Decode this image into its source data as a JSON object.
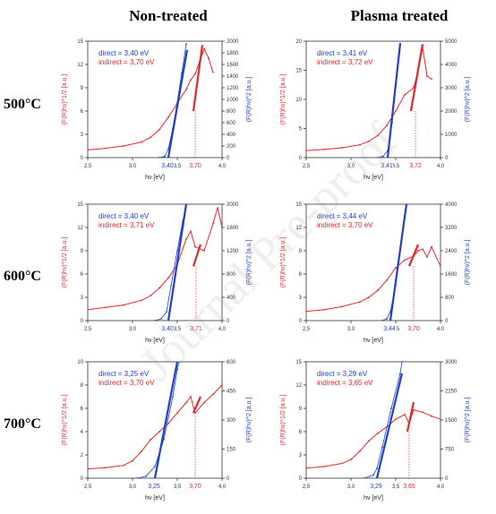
{
  "column_titles": [
    "Non-treated",
    "Plasma treated"
  ],
  "row_labels": [
    "500°C",
    "600°C",
    "700°C"
  ],
  "watermark": "Journal Pre-proof",
  "colors": {
    "indirect": "#e8262a",
    "direct": "#1f3fcf",
    "title": "#000000",
    "axis": "#333333"
  },
  "chart_data": [
    {
      "type": "line",
      "panel": "Non-treated 500°C",
      "xlabel": "hν [eV]",
      "ylabel_left": "(F(R)hν)^1/2 [a.u.]",
      "ylabel_right": "(F(R)hν)^2 [a.u.]",
      "xlim": [
        2.5,
        4.0
      ],
      "ylim_left": [
        0,
        15
      ],
      "ylim_right": [
        0,
        2000
      ],
      "x_ticks": [
        "2,5",
        "3,0",
        "3,5",
        "4,0"
      ],
      "y_ticks_left": [
        "0",
        "3",
        "6",
        "9",
        "12",
        "15"
      ],
      "y_ticks_right": [
        "0",
        "200",
        "400",
        "600",
        "800",
        "1000",
        "1200",
        "1400",
        "1600",
        "1800",
        "2000"
      ],
      "direct_label": "direct = 3,40 eV",
      "indirect_label": "indirect = 3,70 eV",
      "direct_marker": "3,40",
      "indirect_marker": "3,70",
      "direct_value": 3.4,
      "indirect_value": 3.7,
      "indirect_curve": [
        [
          2.5,
          1.0
        ],
        [
          2.7,
          1.2
        ],
        [
          2.9,
          1.5
        ],
        [
          3.1,
          2.0
        ],
        [
          3.2,
          2.6
        ],
        [
          3.3,
          3.6
        ],
        [
          3.4,
          5.2
        ],
        [
          3.5,
          7.0
        ],
        [
          3.6,
          8.8
        ],
        [
          3.65,
          10.0
        ],
        [
          3.7,
          10.8
        ],
        [
          3.75,
          12.4
        ],
        [
          3.8,
          14.0
        ],
        [
          3.85,
          12.8
        ],
        [
          3.9,
          11.0
        ]
      ],
      "direct_curve": [
        [
          3.3,
          0.0
        ],
        [
          3.36,
          20
        ],
        [
          3.4,
          150
        ],
        [
          3.45,
          500
        ],
        [
          3.5,
          950
        ],
        [
          3.55,
          1450
        ],
        [
          3.6,
          1950
        ]
      ],
      "indirect_fit": [
        [
          3.68,
          6.0
        ],
        [
          3.78,
          14.5
        ]
      ],
      "direct_fit": [
        [
          3.4,
          0
        ],
        [
          3.61,
          1850
        ]
      ]
    },
    {
      "type": "line",
      "panel": "Plasma treated 500°C",
      "xlabel": "hν [eV]",
      "ylabel_left": "(F(R)hν)^1/2 [a.u.]",
      "ylabel_right": "(F(R)hν)^2 [a.u.]",
      "xlim": [
        2.5,
        4.0
      ],
      "ylim_left": [
        0,
        20
      ],
      "ylim_right": [
        0,
        5000
      ],
      "x_ticks": [
        "2,5",
        "3,0",
        "3,5",
        "4,0"
      ],
      "y_ticks_left": [
        "0",
        "5",
        "10",
        "15",
        "20"
      ],
      "y_ticks_right": [
        "0",
        "1000",
        "2000",
        "3000",
        "4000",
        "5000"
      ],
      "direct_label": "direct = 3,41 eV",
      "indirect_label": "indirect = 3,72 eV",
      "direct_marker": "3,41",
      "indirect_marker": "3,72",
      "direct_value": 3.41,
      "indirect_value": 3.72,
      "indirect_curve": [
        [
          2.5,
          1.2
        ],
        [
          2.7,
          1.4
        ],
        [
          2.9,
          1.7
        ],
        [
          3.1,
          2.2
        ],
        [
          3.2,
          2.8
        ],
        [
          3.3,
          3.8
        ],
        [
          3.4,
          5.5
        ],
        [
          3.5,
          8.0
        ],
        [
          3.6,
          10.8
        ],
        [
          3.7,
          12.0
        ],
        [
          3.75,
          15.0
        ],
        [
          3.8,
          19.0
        ],
        [
          3.85,
          14.0
        ],
        [
          3.9,
          13.5
        ]
      ],
      "direct_curve": [
        [
          3.3,
          0
        ],
        [
          3.36,
          50
        ],
        [
          3.41,
          300
        ],
        [
          3.46,
          1500
        ],
        [
          3.5,
          3000
        ],
        [
          3.55,
          4900
        ]
      ],
      "indirect_fit": [
        [
          3.67,
          8.0
        ],
        [
          3.8,
          19.5
        ]
      ],
      "direct_fit": [
        [
          3.41,
          0
        ],
        [
          3.55,
          4900
        ]
      ]
    },
    {
      "type": "line",
      "panel": "Non-treated 600°C",
      "xlabel": "hν [eV]",
      "ylabel_left": "(F(R)hν)^1/2 [a.u.]",
      "ylabel_right": "(F(R)hν)^2 [a.u.]",
      "xlim": [
        2.5,
        4.0
      ],
      "ylim_left": [
        0,
        15
      ],
      "ylim_right": [
        0,
        2000
      ],
      "x_ticks": [
        "2,5",
        "3,0",
        "3,5",
        "4,0"
      ],
      "y_ticks_left": [
        "0",
        "3",
        "6",
        "9",
        "12",
        "15"
      ],
      "y_ticks_right": [
        "0",
        "400",
        "800",
        "1200",
        "1600",
        "2000"
      ],
      "direct_label": "direct = 3,40 eV",
      "indirect_label": "indirect = 3,71 eV",
      "direct_marker": "3,40",
      "indirect_marker": "3,71",
      "direct_value": 3.4,
      "indirect_value": 3.71,
      "indirect_curve": [
        [
          2.5,
          1.4
        ],
        [
          2.7,
          1.7
        ],
        [
          2.9,
          2.0
        ],
        [
          3.1,
          2.6
        ],
        [
          3.2,
          3.2
        ],
        [
          3.3,
          4.2
        ],
        [
          3.4,
          5.5
        ],
        [
          3.5,
          7.2
        ],
        [
          3.6,
          10.5
        ],
        [
          3.65,
          11.5
        ],
        [
          3.7,
          9.5
        ],
        [
          3.8,
          9.0
        ],
        [
          3.9,
          12.5
        ],
        [
          3.95,
          14.5
        ],
        [
          4.0,
          12.0
        ]
      ],
      "direct_curve": [
        [
          3.25,
          0
        ],
        [
          3.32,
          30
        ],
        [
          3.38,
          150
        ],
        [
          3.43,
          600
        ],
        [
          3.5,
          1200
        ],
        [
          3.56,
          1700
        ],
        [
          3.6,
          2000
        ]
      ],
      "indirect_fit": [
        [
          3.68,
          7.0
        ],
        [
          3.76,
          9.8
        ]
      ],
      "direct_fit": [
        [
          3.4,
          0
        ],
        [
          3.6,
          2000
        ]
      ]
    },
    {
      "type": "line",
      "panel": "Plasma treated 600°C",
      "xlabel": "hν [eV]",
      "ylabel_left": "(F(R)hν)^1/2 [a.u.]",
      "ylabel_right": "(F(R)hν)^2 [a.u.]",
      "xlim": [
        2.5,
        4.0
      ],
      "ylim_left": [
        0,
        15
      ],
      "ylim_right": [
        0,
        4000
      ],
      "x_ticks": [
        "2,5",
        "3,0",
        "3,5",
        "4,0"
      ],
      "y_ticks_left": [
        "0",
        "3",
        "6",
        "9",
        "12",
        "15"
      ],
      "y_ticks_right": [
        "0",
        "800",
        "1600",
        "2400",
        "3200",
        "4000"
      ],
      "direct_label": "direct = 3,44 eV",
      "indirect_label": "indirect = 3,70 eV",
      "direct_marker": "3,44",
      "indirect_marker": "3,70",
      "direct_value": 3.44,
      "indirect_value": 3.7,
      "indirect_curve": [
        [
          2.5,
          1.2
        ],
        [
          2.7,
          1.4
        ],
        [
          2.9,
          1.8
        ],
        [
          3.1,
          2.4
        ],
        [
          3.2,
          3.0
        ],
        [
          3.3,
          3.9
        ],
        [
          3.4,
          5.2
        ],
        [
          3.5,
          6.8
        ],
        [
          3.6,
          7.8
        ],
        [
          3.7,
          8.3
        ],
        [
          3.75,
          9.0
        ],
        [
          3.8,
          9.2
        ],
        [
          3.85,
          8.2
        ],
        [
          3.9,
          9.5
        ],
        [
          4.0,
          7.0
        ]
      ],
      "direct_curve": [
        [
          3.35,
          0
        ],
        [
          3.4,
          60
        ],
        [
          3.44,
          300
        ],
        [
          3.5,
          1200
        ],
        [
          3.55,
          2400
        ],
        [
          3.6,
          3600
        ],
        [
          3.62,
          4000
        ]
      ],
      "indirect_fit": [
        [
          3.65,
          7.0
        ],
        [
          3.75,
          9.8
        ]
      ],
      "direct_fit": [
        [
          3.44,
          0
        ],
        [
          3.62,
          4000
        ]
      ]
    },
    {
      "type": "line",
      "panel": "Non-treated 700°C",
      "xlabel": "hν [eV]",
      "ylabel_left": "(F(R)hν)^1/2 [a.u.]",
      "ylabel_right": "(F(R)hν)^2 [a.u.]",
      "xlim": [
        2.5,
        4.0
      ],
      "ylim_left": [
        0,
        10
      ],
      "ylim_right": [
        0,
        600
      ],
      "x_ticks": [
        "2,5",
        "3,0",
        "3,5",
        "4,0"
      ],
      "y_ticks_left": [
        "0",
        "2",
        "4",
        "6",
        "8",
        "10"
      ],
      "y_ticks_right": [
        "0",
        "150",
        "300",
        "450",
        "600"
      ],
      "direct_label": "direct = 3,25 eV",
      "indirect_label": "indirect = 3,70 eV",
      "direct_marker": "3,25",
      "indirect_marker": "3,70",
      "direct_value": 3.25,
      "indirect_value": 3.7,
      "indirect_curve": [
        [
          2.5,
          0.8
        ],
        [
          2.7,
          0.9
        ],
        [
          2.9,
          1.1
        ],
        [
          3.0,
          1.5
        ],
        [
          3.1,
          2.3
        ],
        [
          3.2,
          3.3
        ],
        [
          3.3,
          4.0
        ],
        [
          3.4,
          4.7
        ],
        [
          3.5,
          5.6
        ],
        [
          3.6,
          6.5
        ],
        [
          3.65,
          7.0
        ],
        [
          3.7,
          5.6
        ],
        [
          3.8,
          6.5
        ],
        [
          3.9,
          7.2
        ],
        [
          4.0,
          8.0
        ]
      ],
      "direct_curve": [
        [
          3.05,
          0
        ],
        [
          3.15,
          10
        ],
        [
          3.25,
          60
        ],
        [
          3.35,
          200
        ],
        [
          3.45,
          420
        ],
        [
          3.5,
          560
        ],
        [
          3.52,
          600
        ]
      ],
      "indirect_fit": [
        [
          3.68,
          5.6
        ],
        [
          3.76,
          7.0
        ]
      ],
      "direct_fit": [
        [
          3.25,
          0
        ],
        [
          3.5,
          600
        ]
      ]
    },
    {
      "type": "line",
      "panel": "Plasma treated 700°C",
      "xlabel": "hν [eV]",
      "ylabel_left": "(F(R)hν)^1/2 [a.u.]",
      "ylabel_right": "(F(R)hν)^2 [a.u.]",
      "xlim": [
        2.5,
        4.0
      ],
      "ylim_left": [
        0,
        15
      ],
      "ylim_right": [
        0,
        3000
      ],
      "x_ticks": [
        "2,5",
        "3,0",
        "3,5",
        "4,0"
      ],
      "y_ticks_left": [
        "0",
        "3",
        "6",
        "9",
        "12",
        "15"
      ],
      "y_ticks_right": [
        "0",
        "750",
        "1500",
        "2250",
        "3000"
      ],
      "direct_label": "direct = 3,29 eV",
      "indirect_label": "indirect = 3,65 eV",
      "direct_marker": "3,29",
      "indirect_marker": "3,65",
      "direct_value": 3.29,
      "indirect_value": 3.65,
      "indirect_curve": [
        [
          2.5,
          1.3
        ],
        [
          2.7,
          1.5
        ],
        [
          2.9,
          1.9
        ],
        [
          3.0,
          2.4
        ],
        [
          3.1,
          3.5
        ],
        [
          3.2,
          4.8
        ],
        [
          3.3,
          5.8
        ],
        [
          3.4,
          6.6
        ],
        [
          3.5,
          7.6
        ],
        [
          3.6,
          8.2
        ],
        [
          3.65,
          7.0
        ],
        [
          3.7,
          8.8
        ],
        [
          3.8,
          8.5
        ],
        [
          3.9,
          8.0
        ],
        [
          4.0,
          7.6
        ]
      ],
      "direct_curve": [
        [
          3.15,
          0
        ],
        [
          3.25,
          80
        ],
        [
          3.29,
          250
        ],
        [
          3.35,
          800
        ],
        [
          3.45,
          1800
        ],
        [
          3.55,
          2700
        ],
        [
          3.57,
          3000
        ]
      ],
      "indirect_fit": [
        [
          3.63,
          6.0
        ],
        [
          3.7,
          9.8
        ]
      ],
      "direct_fit": [
        [
          3.29,
          0
        ],
        [
          3.57,
          2700
        ]
      ]
    }
  ]
}
